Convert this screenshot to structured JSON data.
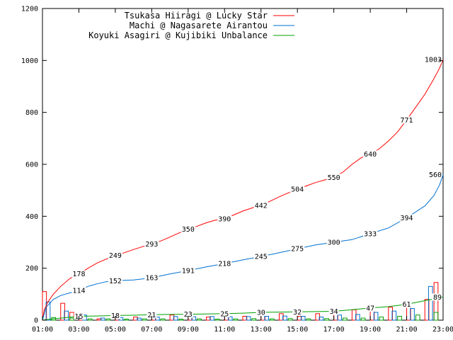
{
  "chart_data": {
    "type": "line",
    "title": "",
    "xlabel": "",
    "ylabel": "",
    "xlim": [
      1,
      23
    ],
    "ylim": [
      0,
      1200
    ],
    "x_ticks": [
      "01:00",
      "03:00",
      "05:00",
      "07:00",
      "09:00",
      "11:00",
      "13:00",
      "15:00",
      "17:00",
      "19:00",
      "21:00",
      "23:00"
    ],
    "y_ticks": [
      "0",
      "200",
      "400",
      "600",
      "800",
      "1000",
      "1200"
    ],
    "legend_position": "top-left",
    "series": [
      {
        "name": "Tsukasa Hiiragi @ Lucky Star",
        "color": "#ff0000",
        "points": [
          [
            1.0,
            0
          ],
          [
            1.1,
            40
          ],
          [
            1.3,
            70
          ],
          [
            1.6,
            100
          ],
          [
            2.0,
            130
          ],
          [
            2.5,
            160
          ],
          [
            3.0,
            178
          ],
          [
            3.5,
            200
          ],
          [
            4.0,
            220
          ],
          [
            4.5,
            235
          ],
          [
            5.0,
            249
          ],
          [
            5.5,
            260
          ],
          [
            6.0,
            272
          ],
          [
            6.5,
            283
          ],
          [
            7.0,
            293
          ],
          [
            7.5,
            305
          ],
          [
            8.0,
            320
          ],
          [
            8.5,
            336
          ],
          [
            9.0,
            350
          ],
          [
            9.5,
            362
          ],
          [
            10.0,
            375
          ],
          [
            10.5,
            385
          ],
          [
            11.0,
            390
          ],
          [
            11.5,
            405
          ],
          [
            12.0,
            420
          ],
          [
            12.5,
            432
          ],
          [
            13.0,
            442
          ],
          [
            13.5,
            458
          ],
          [
            14.0,
            475
          ],
          [
            14.5,
            490
          ],
          [
            15.0,
            504
          ],
          [
            15.5,
            517
          ],
          [
            16.0,
            530
          ],
          [
            16.5,
            540
          ],
          [
            17.0,
            550
          ],
          [
            17.5,
            570
          ],
          [
            18.0,
            600
          ],
          [
            18.5,
            625
          ],
          [
            19.0,
            640
          ],
          [
            19.5,
            660
          ],
          [
            20.0,
            690
          ],
          [
            20.5,
            725
          ],
          [
            21.0,
            771
          ],
          [
            21.5,
            820
          ],
          [
            22.0,
            870
          ],
          [
            22.5,
            930
          ],
          [
            22.8,
            970
          ],
          [
            23.0,
            1003
          ]
        ],
        "labels": [
          [
            3.0,
            "178"
          ],
          [
            5.0,
            "249"
          ],
          [
            7.0,
            "293"
          ],
          [
            9.0,
            "350"
          ],
          [
            11.0,
            "390"
          ],
          [
            13.0,
            "442"
          ],
          [
            15.0,
            "504"
          ],
          [
            17.0,
            "550"
          ],
          [
            19.0,
            "640"
          ],
          [
            21.0,
            "771"
          ],
          [
            23.0,
            "1003"
          ]
        ],
        "bars": [
          [
            1.0,
            110
          ],
          [
            2.0,
            65
          ],
          [
            2.5,
            30
          ],
          [
            3.0,
            10
          ],
          [
            4.0,
            5
          ],
          [
            5.0,
            8
          ],
          [
            6.0,
            12
          ],
          [
            7.0,
            15
          ],
          [
            8.0,
            20
          ],
          [
            9.0,
            15
          ],
          [
            10.0,
            12
          ],
          [
            11.0,
            20
          ],
          [
            12.0,
            15
          ],
          [
            13.0,
            20
          ],
          [
            14.0,
            25
          ],
          [
            15.0,
            15
          ],
          [
            16.0,
            25
          ],
          [
            17.0,
            30
          ],
          [
            18.0,
            40
          ],
          [
            19.0,
            45
          ],
          [
            20.0,
            50
          ],
          [
            21.0,
            70
          ],
          [
            22.0,
            80
          ],
          [
            22.5,
            145
          ]
        ]
      },
      {
        "name": "Machi @ Nagasarete Airantou",
        "color": "#0070d0",
        "points": [
          [
            1.0,
            0
          ],
          [
            1.2,
            50
          ],
          [
            1.6,
            80
          ],
          [
            2.0,
            95
          ],
          [
            2.5,
            105
          ],
          [
            3.0,
            114
          ],
          [
            3.5,
            130
          ],
          [
            4.0,
            140
          ],
          [
            4.5,
            148
          ],
          [
            5.0,
            152
          ],
          [
            6.0,
            155
          ],
          [
            7.0,
            163
          ],
          [
            8.0,
            178
          ],
          [
            9.0,
            191
          ],
          [
            10.0,
            205
          ],
          [
            11.0,
            218
          ],
          [
            12.0,
            232
          ],
          [
            13.0,
            245
          ],
          [
            14.0,
            260
          ],
          [
            15.0,
            275
          ],
          [
            16.0,
            290
          ],
          [
            17.0,
            300
          ],
          [
            18.0,
            310
          ],
          [
            19.0,
            333
          ],
          [
            20.0,
            355
          ],
          [
            21.0,
            394
          ],
          [
            22.0,
            440
          ],
          [
            22.5,
            480
          ],
          [
            22.8,
            520
          ],
          [
            23.0,
            560
          ]
        ],
        "labels": [
          [
            3.0,
            "114"
          ],
          [
            5.0,
            "152"
          ],
          [
            7.0,
            "163"
          ],
          [
            9.0,
            "191"
          ],
          [
            11.0,
            "218"
          ],
          [
            13.0,
            "245"
          ],
          [
            15.0,
            "275"
          ],
          [
            17.0,
            "300"
          ],
          [
            19.0,
            "333"
          ],
          [
            21.0,
            "394"
          ],
          [
            23.0,
            "560"
          ]
        ],
        "bars": [
          [
            1.2,
            70
          ],
          [
            2.2,
            35
          ],
          [
            3.2,
            20
          ],
          [
            4.2,
            8
          ],
          [
            5.2,
            10
          ],
          [
            6.2,
            8
          ],
          [
            7.2,
            12
          ],
          [
            8.2,
            14
          ],
          [
            9.2,
            13
          ],
          [
            10.2,
            14
          ],
          [
            11.2,
            13
          ],
          [
            12.2,
            14
          ],
          [
            13.2,
            15
          ],
          [
            14.2,
            16
          ],
          [
            15.2,
            15
          ],
          [
            16.2,
            12
          ],
          [
            17.2,
            20
          ],
          [
            18.2,
            22
          ],
          [
            19.2,
            30
          ],
          [
            20.2,
            35
          ],
          [
            21.2,
            45
          ],
          [
            22.2,
            130
          ]
        ]
      },
      {
        "name": "Koyuki Asagiri @ Kujibiki Unbalance",
        "color": "#00a000",
        "points": [
          [
            1.0,
            0
          ],
          [
            1.5,
            5
          ],
          [
            2.0,
            8
          ],
          [
            3.0,
            15
          ],
          [
            4.0,
            16
          ],
          [
            5.0,
            18
          ],
          [
            6.0,
            19
          ],
          [
            7.0,
            21
          ],
          [
            8.0,
            22
          ],
          [
            9.0,
            23
          ],
          [
            10.0,
            24
          ],
          [
            11.0,
            25
          ],
          [
            12.0,
            27
          ],
          [
            13.0,
            30
          ],
          [
            14.0,
            31
          ],
          [
            15.0,
            32
          ],
          [
            16.0,
            33
          ],
          [
            17.0,
            34
          ],
          [
            18.0,
            40
          ],
          [
            19.0,
            47
          ],
          [
            20.0,
            52
          ],
          [
            21.0,
            61
          ],
          [
            22.0,
            75
          ],
          [
            23.0,
            89
          ]
        ],
        "labels": [
          [
            3.0,
            "15"
          ],
          [
            5.0,
            "18"
          ],
          [
            7.0,
            "21"
          ],
          [
            9.0,
            "23"
          ],
          [
            11.0,
            "25"
          ],
          [
            13.0,
            "30"
          ],
          [
            15.0,
            "32"
          ],
          [
            17.0,
            "34"
          ],
          [
            19.0,
            "47"
          ],
          [
            21.0,
            "61"
          ],
          [
            23.0,
            "89"
          ]
        ],
        "bars": [
          [
            1.5,
            10
          ],
          [
            2.5,
            8
          ],
          [
            3.5,
            5
          ],
          [
            4.5,
            5
          ],
          [
            5.5,
            4
          ],
          [
            6.5,
            5
          ],
          [
            7.5,
            5
          ],
          [
            8.5,
            4
          ],
          [
            9.5,
            5
          ],
          [
            10.5,
            4
          ],
          [
            11.5,
            5
          ],
          [
            12.5,
            6
          ],
          [
            13.5,
            5
          ],
          [
            14.5,
            6
          ],
          [
            15.5,
            5
          ],
          [
            16.5,
            6
          ],
          [
            17.5,
            8
          ],
          [
            18.5,
            8
          ],
          [
            19.5,
            12
          ],
          [
            20.5,
            15
          ],
          [
            21.5,
            20
          ],
          [
            22.5,
            30
          ]
        ]
      }
    ]
  }
}
